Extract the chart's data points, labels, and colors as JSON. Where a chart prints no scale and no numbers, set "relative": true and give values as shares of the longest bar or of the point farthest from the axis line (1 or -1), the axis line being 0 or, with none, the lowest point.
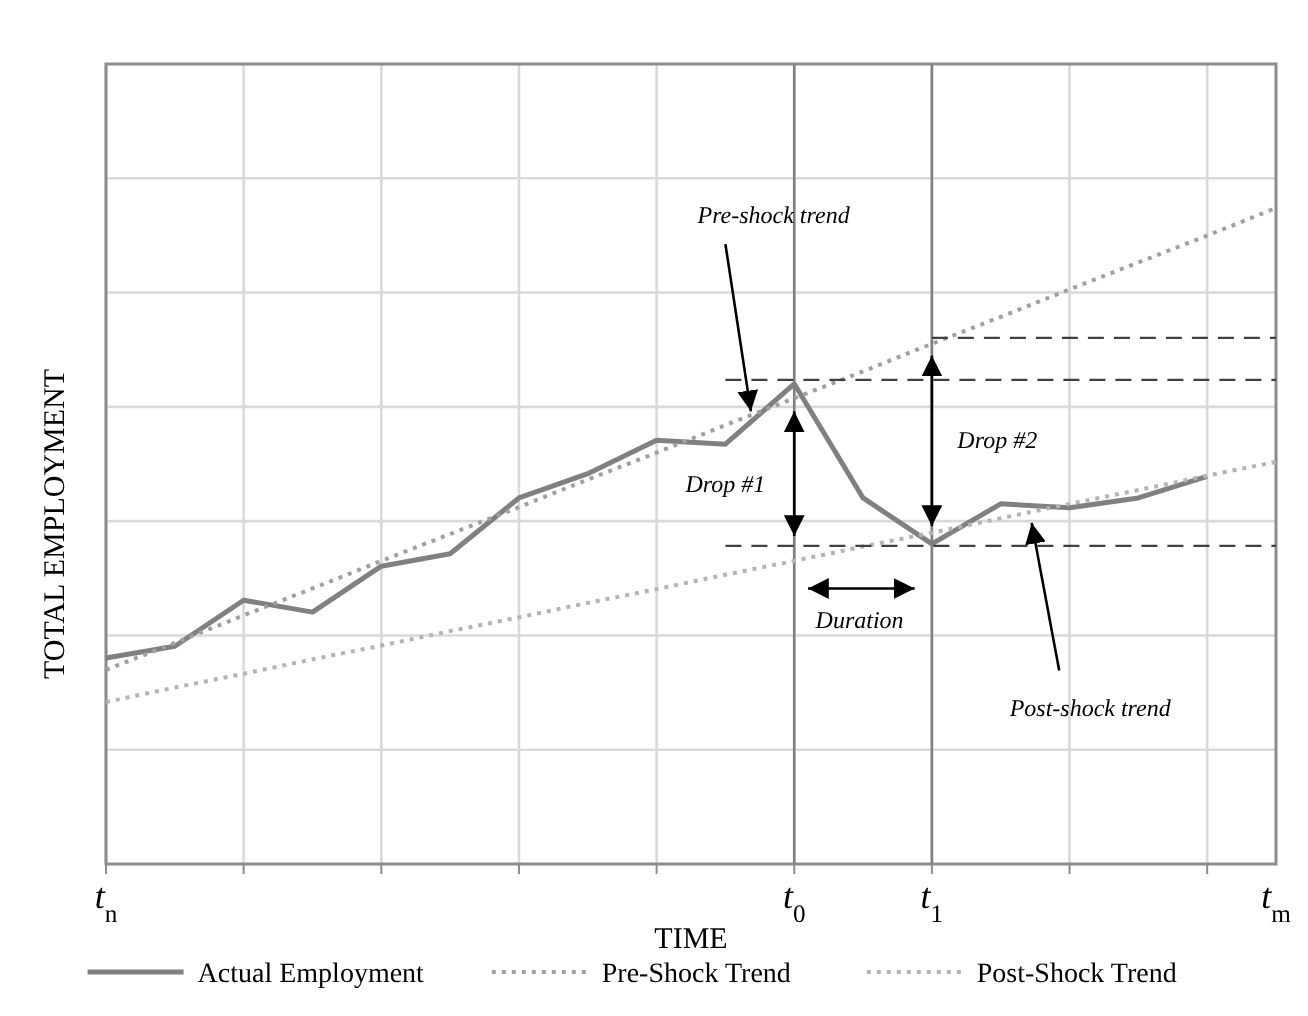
{
  "chart_data": {
    "type": "line",
    "relative": true,
    "xlabel": "TIME",
    "ylabel": "TOTAL EMPLOYMENT",
    "categories": [
      "t$_{n}$",
      null,
      null,
      null,
      null,
      null,
      null,
      null,
      null,
      null,
      "t$_{0}$",
      null,
      "t$_{1}$",
      null,
      null,
      null,
      null,
      "t$_{m}$"
    ],
    "grid": true,
    "legend": "bottom",
    "series": [
      {
        "name": "Actual Employment",
        "color": "#808080",
        "line_style": "solid",
        "values": [
          0.314,
          0.332,
          0.402,
          0.384,
          0.454,
          0.473,
          0.558,
          0.595,
          0.646,
          0.64,
          0.732,
          0.558,
          0.488,
          0.549,
          0.543,
          0.558,
          0.591,
          null
        ]
      },
      {
        "name": "Pre-Shock Trend",
        "color": "#a0a0a0",
        "line_style": "dotted",
        "values": [
          0.296,
          0.337,
          0.379,
          0.42,
          0.462,
          0.503,
          0.544,
          0.586,
          0.627,
          0.669,
          0.71,
          0.751,
          0.793,
          0.834,
          0.876,
          0.917,
          0.958,
          1
        ]
      },
      {
        "name": "Post-Shock Trend",
        "color": "#b4b4b4",
        "line_style": "dotted",
        "values": [
          0.247,
          0.269,
          0.29,
          0.312,
          0.333,
          0.355,
          0.376,
          0.398,
          0.419,
          0.441,
          0.462,
          0.484,
          0.505,
          0.527,
          0.549,
          0.57,
          0.592,
          0.613
        ]
      },
      {
        "color": "#404040",
        "line_style": "dashed",
        "values": [
          null,
          null,
          null,
          null,
          null,
          null,
          null,
          null,
          null,
          0.738,
          0.738,
          0.738,
          0.738,
          0.738,
          0.738,
          0.738,
          0.738,
          0.738
        ]
      },
      {
        "color": "#404040",
        "line_style": "dashed",
        "values": [
          null,
          null,
          null,
          null,
          null,
          null,
          null,
          null,
          null,
          null,
          null,
          null,
          0.802,
          0.802,
          0.802,
          0.802,
          0.802,
          0.802
        ]
      },
      {
        "color": "#404040",
        "line_style": "dashed",
        "values": [
          null,
          null,
          null,
          null,
          null,
          null,
          null,
          null,
          null,
          0.485,
          0.485,
          0.485,
          0.485,
          0.485,
          0.485,
          0.485,
          0.485,
          0.485
        ]
      }
    ],
    "ref_lines": [
      {
        "axis": "x",
        "value": "t$_{0}$",
        "color": "#7f7f7f"
      },
      {
        "axis": "x",
        "value": "t$_{1}$",
        "color": "#7f7f7f"
      }
    ],
    "annotations": [
      "Pre-shock trend",
      "Drop #1",
      "Drop #2",
      "Duration",
      "Post-shock trend"
    ]
  }
}
